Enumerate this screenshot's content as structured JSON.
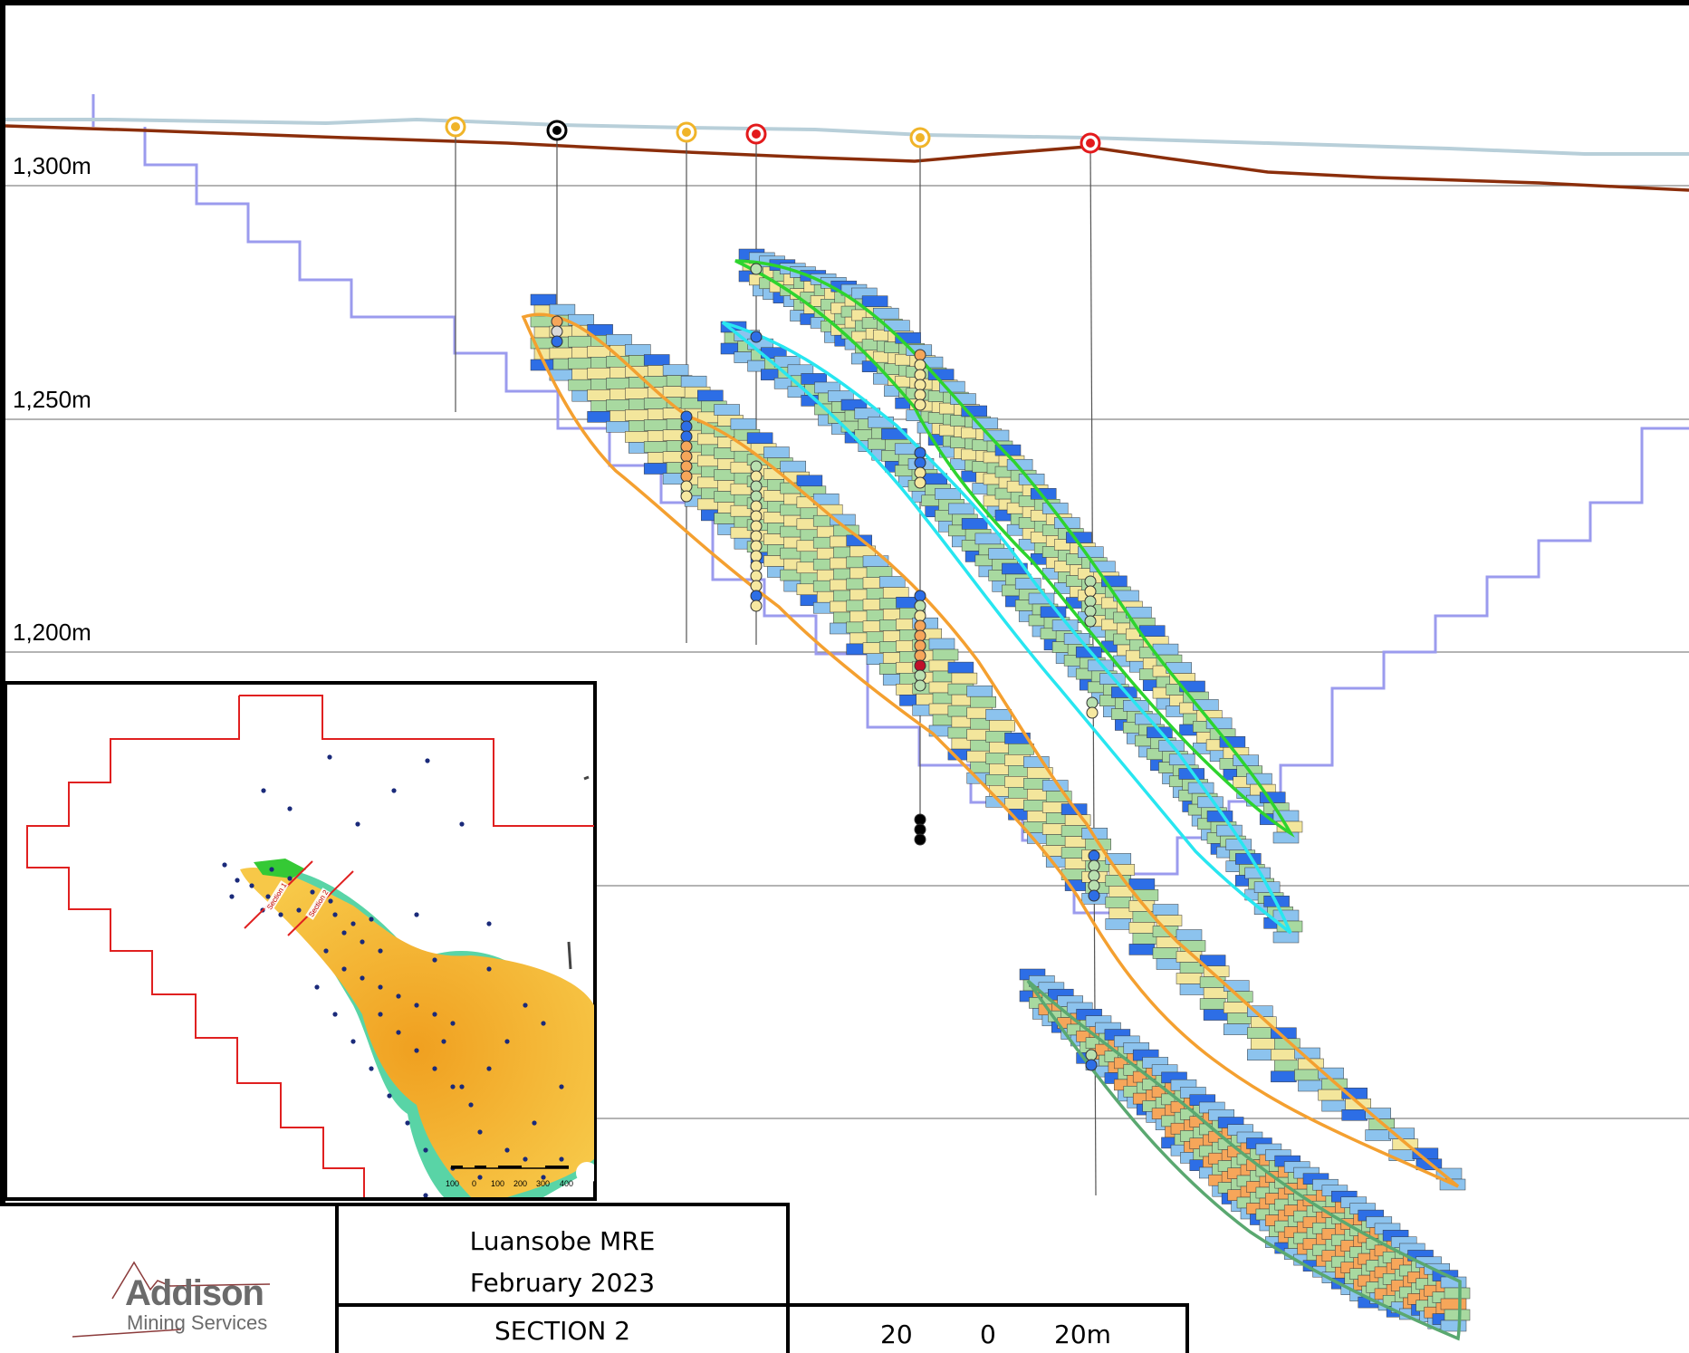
{
  "section": {
    "elevation_labels": [
      "1,300m",
      "1,250m",
      "1,200m"
    ],
    "colors": {
      "surface_topography": "#8b2e0b",
      "surface_light": "#b8cfd9",
      "pit_shell": "#9999ee",
      "lode_orange": "#f4a030",
      "lode_green": "#2ed42e",
      "lode_cyan": "#28e6f0",
      "lode_darkgreen": "#5aa870",
      "block_yellow": "#f3e69c",
      "block_green": "#a8d9a0",
      "block_orange": "#f6a65a",
      "block_blue": "#2d6ee6",
      "block_lightblue": "#8cc3ee"
    },
    "collar_markers": [
      "yellow",
      "black",
      "yellow",
      "red",
      "yellow",
      "red"
    ]
  },
  "inset_map": {
    "icon": "location-map",
    "section_labels": [
      "Section 1",
      "Section 2"
    ],
    "scale_ticks": [
      "100",
      "0",
      "100",
      "200",
      "300",
      "400"
    ]
  },
  "title_block": {
    "logo_main": "Addison",
    "logo_sub": "Mining Services",
    "project": "Luansobe MRE",
    "date": "February 2023",
    "section_name": "SECTION 2",
    "scale_labels": [
      "20",
      "0",
      "20m"
    ]
  }
}
